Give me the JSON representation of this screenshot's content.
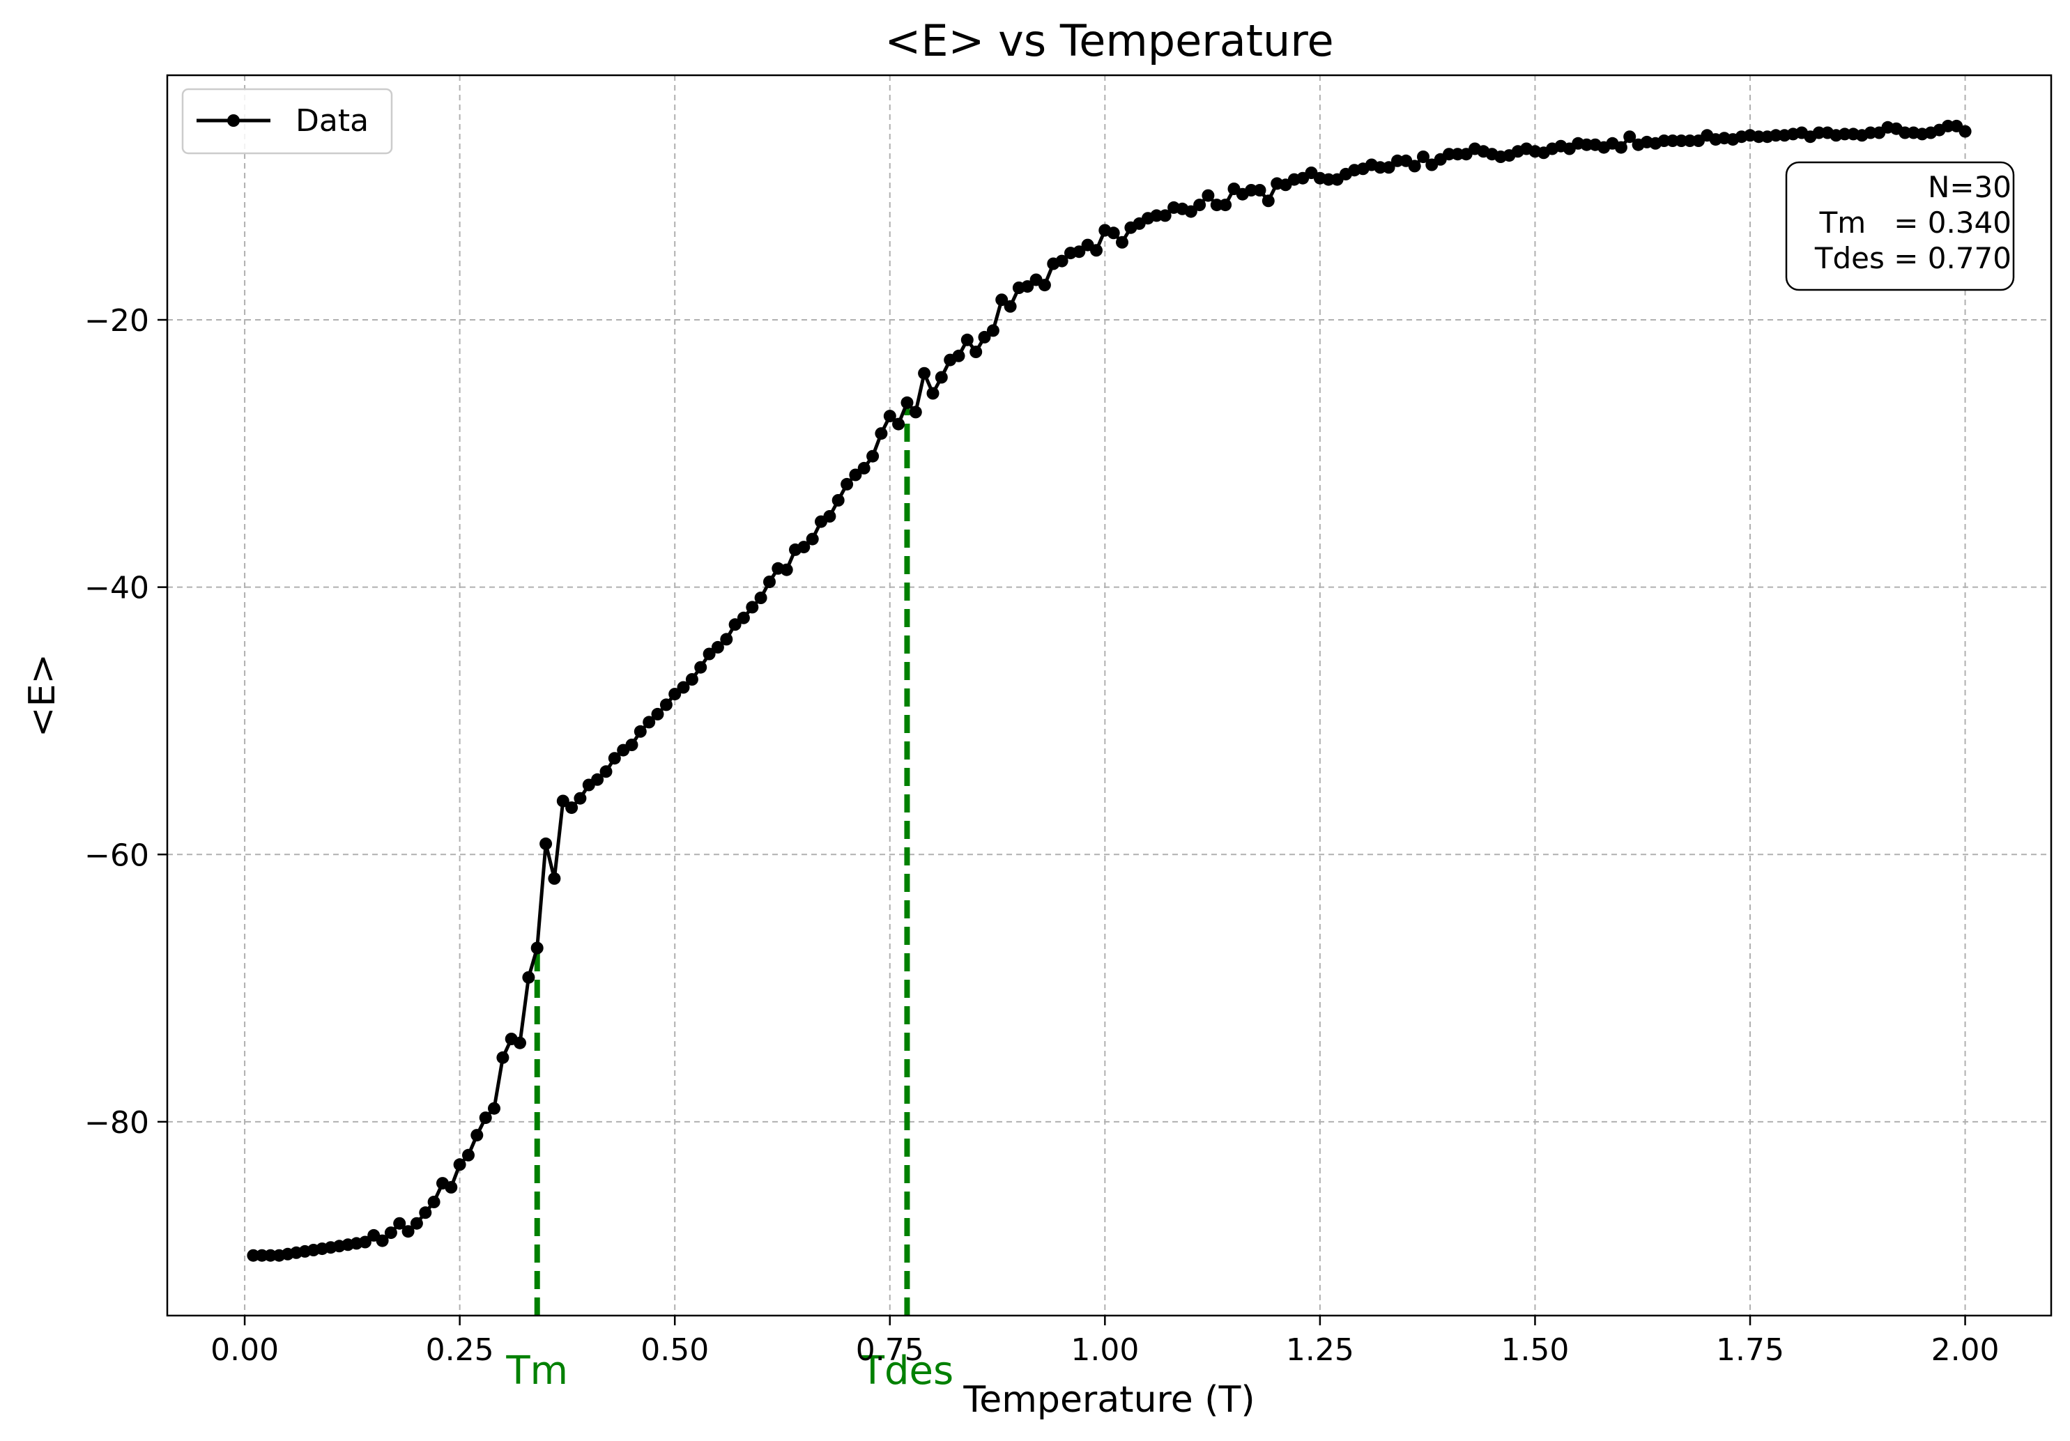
{
  "chart_data": {
    "type": "line",
    "title": "<E> vs Temperature",
    "xlabel": "Temperature (T)",
    "ylabel": "<E>",
    "xlim": [
      -0.09,
      2.1
    ],
    "ylim": [
      -94.5,
      -1.7
    ],
    "xticks": [
      0.0,
      0.25,
      0.5,
      0.75,
      1.0,
      1.25,
      1.5,
      1.75,
      2.0
    ],
    "xtick_labels": [
      "0.00",
      "0.25",
      "0.50",
      "0.75",
      "1.00",
      "1.25",
      "1.50",
      "1.75",
      "2.00"
    ],
    "yticks": [
      -80,
      -60,
      -40,
      -20
    ],
    "ytick_labels": [
      "−80",
      "−60",
      "−40",
      "−20"
    ],
    "grid": true,
    "legend": {
      "position": "top-left",
      "entries": [
        "Data"
      ]
    },
    "series": [
      {
        "name": "Data",
        "color": "#000000",
        "marker": "circle",
        "points": [
          [
            0.01,
            -90.0
          ],
          [
            0.02,
            -90.0
          ],
          [
            0.03,
            -90.0
          ],
          [
            0.04,
            -90.0
          ],
          [
            0.05,
            -89.9
          ],
          [
            0.06,
            -89.8
          ],
          [
            0.07,
            -89.7
          ],
          [
            0.08,
            -89.6
          ],
          [
            0.09,
            -89.5
          ],
          [
            0.1,
            -89.4
          ],
          [
            0.11,
            -89.3
          ],
          [
            0.12,
            -89.2
          ],
          [
            0.13,
            -89.1
          ],
          [
            0.14,
            -89.0
          ],
          [
            0.15,
            -88.5
          ],
          [
            0.16,
            -88.9
          ],
          [
            0.17,
            -88.3
          ],
          [
            0.18,
            -87.6
          ],
          [
            0.19,
            -88.2
          ],
          [
            0.2,
            -87.6
          ],
          [
            0.21,
            -86.8
          ],
          [
            0.22,
            -86.0
          ],
          [
            0.23,
            -84.6
          ],
          [
            0.24,
            -84.9
          ],
          [
            0.25,
            -83.2
          ],
          [
            0.26,
            -82.5
          ],
          [
            0.27,
            -81.0
          ],
          [
            0.28,
            -79.7
          ],
          [
            0.29,
            -79.0
          ],
          [
            0.3,
            -75.2
          ],
          [
            0.31,
            -73.8
          ],
          [
            0.32,
            -74.1
          ],
          [
            0.33,
            -69.2
          ],
          [
            0.34,
            -67.0
          ],
          [
            0.35,
            -59.2
          ],
          [
            0.36,
            -61.8
          ],
          [
            0.37,
            -56.0
          ],
          [
            0.38,
            -56.5
          ],
          [
            0.39,
            -55.8
          ],
          [
            0.4,
            -54.8
          ],
          [
            0.41,
            -54.4
          ],
          [
            0.42,
            -53.8
          ],
          [
            0.43,
            -52.8
          ],
          [
            0.44,
            -52.2
          ],
          [
            0.45,
            -51.8
          ],
          [
            0.46,
            -50.8
          ],
          [
            0.47,
            -50.1
          ],
          [
            0.48,
            -49.5
          ],
          [
            0.49,
            -48.8
          ],
          [
            0.5,
            -48.0
          ],
          [
            0.51,
            -47.5
          ],
          [
            0.52,
            -46.9
          ],
          [
            0.53,
            -46.0
          ],
          [
            0.54,
            -45.0
          ],
          [
            0.55,
            -44.5
          ],
          [
            0.56,
            -43.9
          ],
          [
            0.57,
            -42.8
          ],
          [
            0.58,
            -42.3
          ],
          [
            0.59,
            -41.5
          ],
          [
            0.6,
            -40.8
          ],
          [
            0.61,
            -39.6
          ],
          [
            0.62,
            -38.6
          ],
          [
            0.63,
            -38.7
          ],
          [
            0.64,
            -37.2
          ],
          [
            0.65,
            -37.0
          ],
          [
            0.66,
            -36.4
          ],
          [
            0.67,
            -35.1
          ],
          [
            0.68,
            -34.7
          ],
          [
            0.69,
            -33.5
          ],
          [
            0.7,
            -32.3
          ],
          [
            0.71,
            -31.6
          ],
          [
            0.72,
            -31.1
          ],
          [
            0.73,
            -30.2
          ],
          [
            0.74,
            -28.5
          ],
          [
            0.75,
            -27.2
          ],
          [
            0.76,
            -27.8
          ],
          [
            0.77,
            -26.2
          ],
          [
            0.78,
            -26.9
          ],
          [
            0.79,
            -24.0
          ],
          [
            0.8,
            -25.5
          ],
          [
            0.81,
            -24.3
          ],
          [
            0.82,
            -23.0
          ],
          [
            0.83,
            -22.7
          ],
          [
            0.84,
            -21.5
          ],
          [
            0.85,
            -22.4
          ],
          [
            0.86,
            -21.3
          ],
          [
            0.87,
            -20.8
          ],
          [
            0.88,
            -18.5
          ],
          [
            0.89,
            -19.0
          ],
          [
            0.9,
            -17.6
          ],
          [
            0.91,
            -17.5
          ],
          [
            0.92,
            -17.0
          ],
          [
            0.93,
            -17.4
          ],
          [
            0.94,
            -15.8
          ],
          [
            0.95,
            -15.6
          ],
          [
            0.96,
            -15.0
          ],
          [
            0.97,
            -14.9
          ],
          [
            0.98,
            -14.4
          ],
          [
            0.99,
            -14.8
          ],
          [
            1.0,
            -13.3
          ],
          [
            1.01,
            -13.5
          ],
          [
            1.02,
            -14.2
          ],
          [
            1.03,
            -13.1
          ],
          [
            1.04,
            -12.8
          ],
          [
            1.05,
            -12.4
          ],
          [
            1.06,
            -12.2
          ],
          [
            1.07,
            -12.2
          ],
          [
            1.08,
            -11.6
          ],
          [
            1.09,
            -11.7
          ],
          [
            1.1,
            -11.9
          ],
          [
            1.11,
            -11.4
          ],
          [
            1.12,
            -10.7
          ],
          [
            1.13,
            -11.4
          ],
          [
            1.14,
            -11.4
          ],
          [
            1.15,
            -10.2
          ],
          [
            1.16,
            -10.6
          ],
          [
            1.17,
            -10.3
          ],
          [
            1.18,
            -10.3
          ],
          [
            1.19,
            -11.1
          ],
          [
            1.2,
            -9.8
          ],
          [
            1.21,
            -9.9
          ],
          [
            1.22,
            -9.5
          ],
          [
            1.23,
            -9.4
          ],
          [
            1.24,
            -9.0
          ],
          [
            1.25,
            -9.4
          ],
          [
            1.26,
            -9.5
          ],
          [
            1.27,
            -9.5
          ],
          [
            1.28,
            -9.1
          ],
          [
            1.29,
            -8.8
          ],
          [
            1.3,
            -8.7
          ],
          [
            1.31,
            -8.4
          ],
          [
            1.32,
            -8.6
          ],
          [
            1.33,
            -8.6
          ],
          [
            1.34,
            -8.1
          ],
          [
            1.35,
            -8.1
          ],
          [
            1.36,
            -8.5
          ],
          [
            1.37,
            -7.8
          ],
          [
            1.38,
            -8.4
          ],
          [
            1.39,
            -8.0
          ],
          [
            1.4,
            -7.6
          ],
          [
            1.41,
            -7.6
          ],
          [
            1.42,
            -7.6
          ],
          [
            1.43,
            -7.2
          ],
          [
            1.44,
            -7.4
          ],
          [
            1.45,
            -7.6
          ],
          [
            1.46,
            -7.8
          ],
          [
            1.47,
            -7.7
          ],
          [
            1.48,
            -7.4
          ],
          [
            1.49,
            -7.2
          ],
          [
            1.5,
            -7.4
          ],
          [
            1.51,
            -7.5
          ],
          [
            1.52,
            -7.2
          ],
          [
            1.53,
            -7.0
          ],
          [
            1.54,
            -7.2
          ],
          [
            1.55,
            -6.8
          ],
          [
            1.56,
            -6.9
          ],
          [
            1.57,
            -6.9
          ],
          [
            1.58,
            -7.1
          ],
          [
            1.59,
            -6.8
          ],
          [
            1.6,
            -7.1
          ],
          [
            1.61,
            -6.3
          ],
          [
            1.62,
            -6.9
          ],
          [
            1.63,
            -6.7
          ],
          [
            1.64,
            -6.8
          ],
          [
            1.65,
            -6.6
          ],
          [
            1.66,
            -6.6
          ],
          [
            1.67,
            -6.6
          ],
          [
            1.68,
            -6.6
          ],
          [
            1.69,
            -6.6
          ],
          [
            1.7,
            -6.2
          ],
          [
            1.71,
            -6.5
          ],
          [
            1.72,
            -6.4
          ],
          [
            1.73,
            -6.5
          ],
          [
            1.74,
            -6.3
          ],
          [
            1.75,
            -6.2
          ],
          [
            1.76,
            -6.3
          ],
          [
            1.77,
            -6.3
          ],
          [
            1.78,
            -6.2
          ],
          [
            1.79,
            -6.2
          ],
          [
            1.8,
            -6.1
          ],
          [
            1.81,
            -6.0
          ],
          [
            1.82,
            -6.3
          ],
          [
            1.83,
            -6.0
          ],
          [
            1.84,
            -6.0
          ],
          [
            1.85,
            -6.2
          ],
          [
            1.86,
            -6.1
          ],
          [
            1.87,
            -6.1
          ],
          [
            1.88,
            -6.2
          ],
          [
            1.89,
            -6.0
          ],
          [
            1.9,
            -6.0
          ],
          [
            1.91,
            -5.6
          ],
          [
            1.92,
            -5.7
          ],
          [
            1.93,
            -6.0
          ],
          [
            1.94,
            -6.0
          ],
          [
            1.95,
            -6.1
          ],
          [
            1.96,
            -6.0
          ],
          [
            1.97,
            -5.8
          ],
          [
            1.98,
            -5.5
          ],
          [
            1.99,
            -5.5
          ],
          [
            2.0,
            -5.9
          ]
        ]
      }
    ],
    "vlines": [
      {
        "label": "Tm",
        "x": 0.34,
        "y_end": -67.0,
        "color": "#008000"
      },
      {
        "label": "Tdes",
        "x": 0.77,
        "y_end": -26.2,
        "color": "#008000"
      }
    ],
    "info_box": {
      "position": "top-right",
      "lines": [
        "N=30",
        "Tm   = 0.340",
        "Tdes = 0.770"
      ]
    }
  }
}
